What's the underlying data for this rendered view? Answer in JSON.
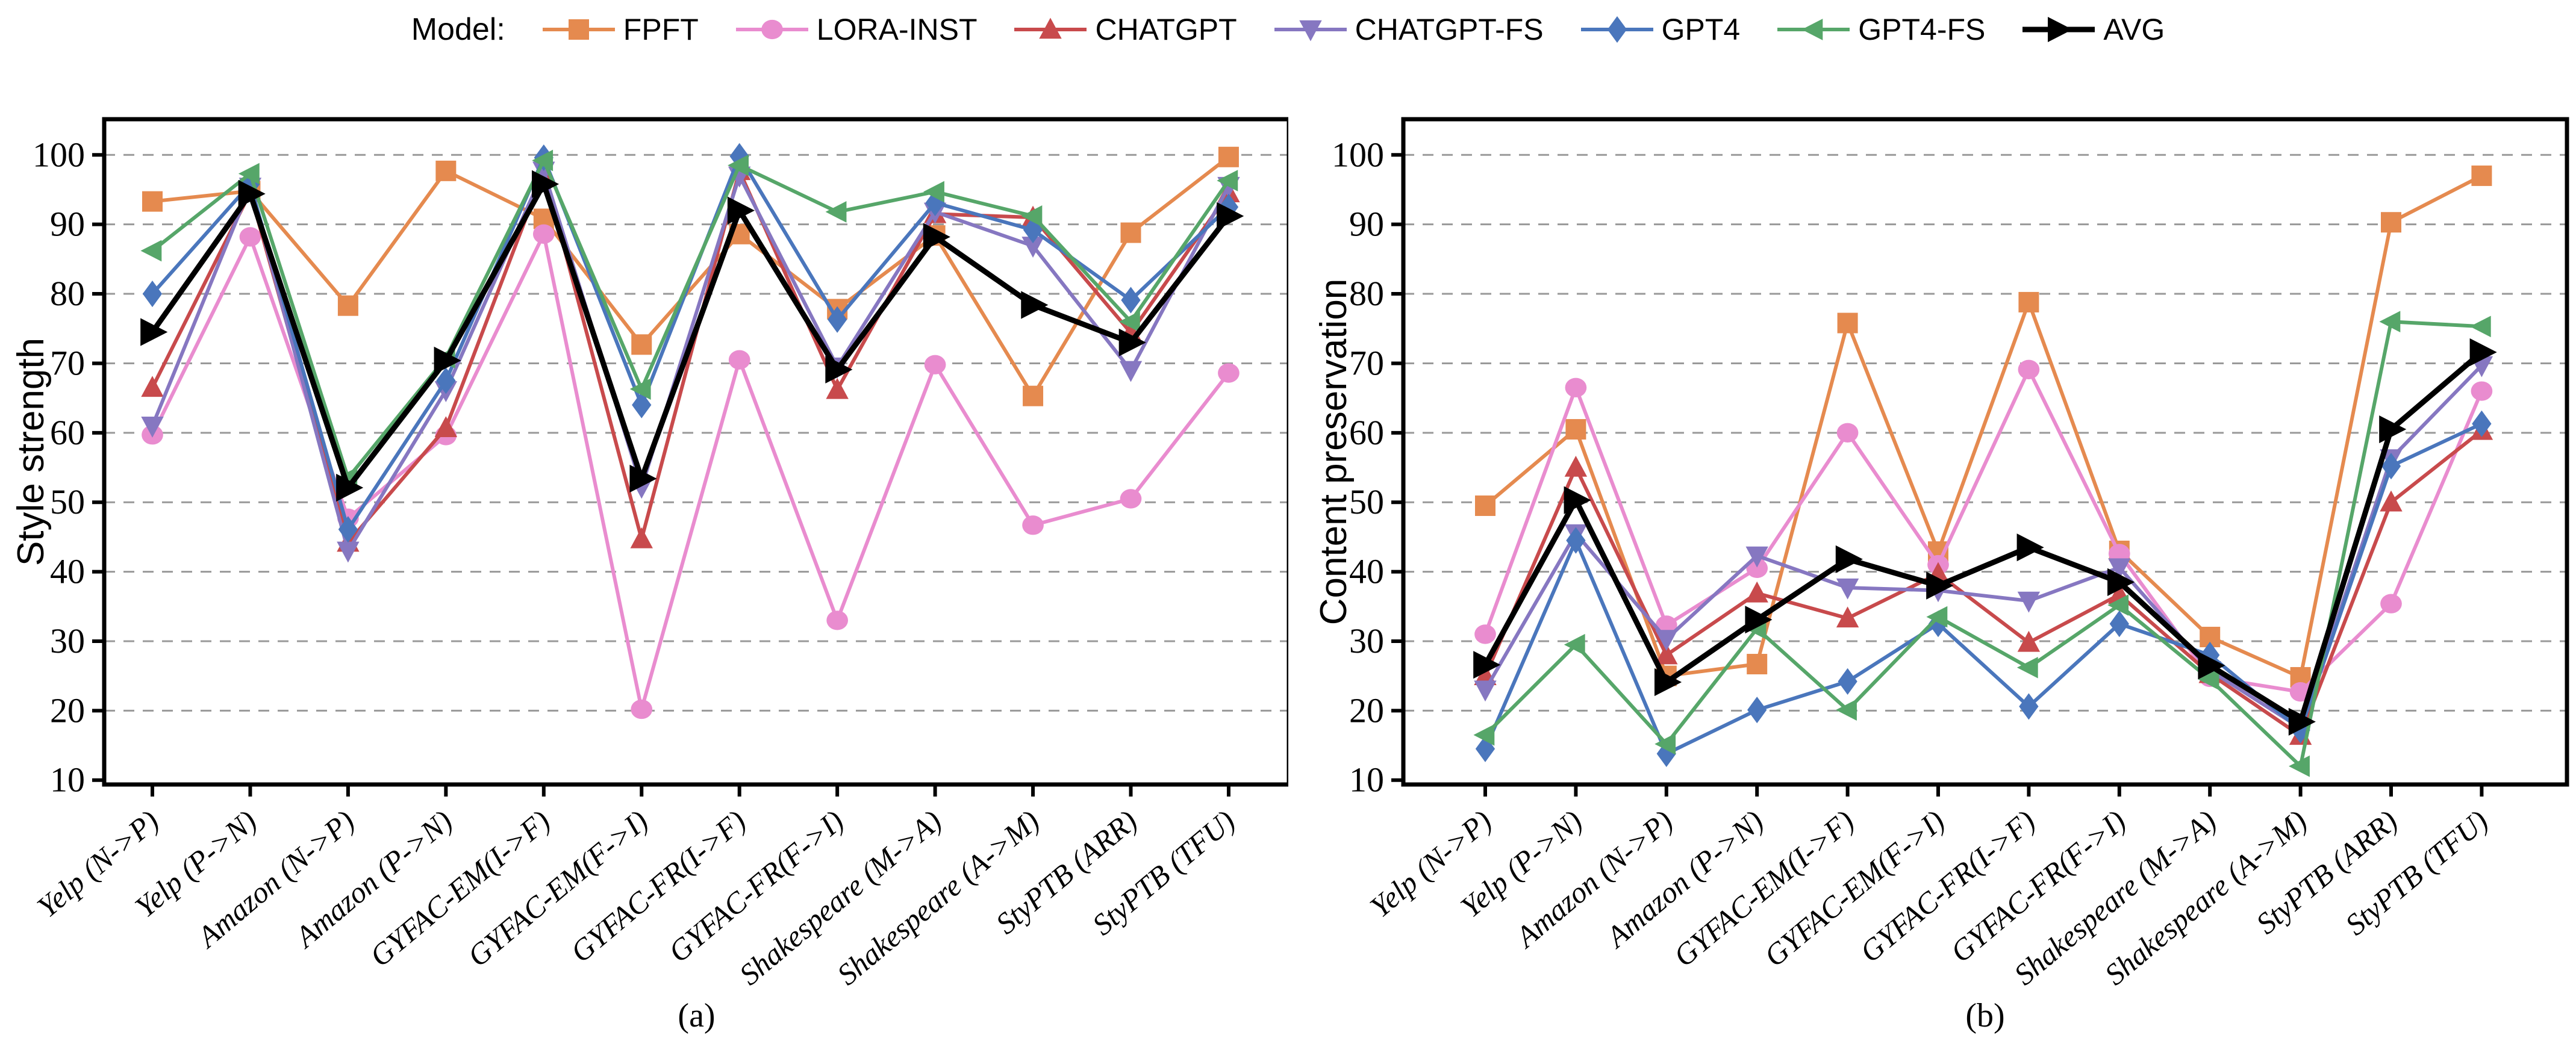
{
  "legend": {
    "title": "Model:",
    "items": [
      "FPFT",
      "LORA-INST",
      "CHATGPT",
      "CHATGPT-FS",
      "GPT4",
      "GPT4-FS",
      "AVG"
    ]
  },
  "colors": {
    "FPFT": "#E58A4F",
    "LORA-INST": "#E98CCF",
    "CHATGPT": "#C84A4C",
    "CHATGPT-FS": "#8677C1",
    "GPT4": "#4A76BC",
    "GPT4-FS": "#56A669",
    "AVG": "#000000",
    "gridline": "#999999",
    "axis": "#000000"
  },
  "chart_data": [
    {
      "type": "line",
      "title": "(a)",
      "ylabel": "Style strength",
      "ylim": [
        10,
        105
      ],
      "yticks": [
        10,
        20,
        30,
        40,
        50,
        60,
        70,
        80,
        90,
        100
      ],
      "grid": "dashed horizontal",
      "legend_position": "top figure-level",
      "categories": [
        "Yelp (N->P)",
        "Yelp (P->N)",
        "Amazon (N->P)",
        "Amazon (P->N)",
        "GYFAC-EM(I->F)",
        "GYFAC-EM(F->I)",
        "GYFAC-FR(I->F)",
        "GYFAC-FR(F->I)",
        "Shakespeare (M->A)",
        "Shakespeare (A->M)",
        "StyPTB (ARR)",
        "StyPTB (TFU)"
      ],
      "series": [
        {
          "name": "FPFT",
          "marker": "square",
          "values": [
            93.3,
            94.8,
            78.3,
            97.7,
            90.8,
            72.7,
            88.6,
            77.8,
            88.4,
            65.3,
            88.8,
            99.7
          ]
        },
        {
          "name": "LORA-INST",
          "marker": "circle",
          "values": [
            59.7,
            88.2,
            47.7,
            59.6,
            88.6,
            20.2,
            70.5,
            33.0,
            69.8,
            46.7,
            50.5,
            68.6
          ]
        },
        {
          "name": "CHATGPT",
          "marker": "triangle-up",
          "values": [
            66.5,
            94.6,
            44.2,
            60.7,
            97.6,
            44.7,
            97.7,
            66.2,
            91.5,
            91.0,
            74.4,
            94.5
          ]
        },
        {
          "name": "CHATGPT-FS",
          "marker": "triangle-down",
          "values": [
            61.0,
            95.4,
            43.0,
            66.1,
            97.7,
            52.2,
            97.0,
            69.5,
            91.8,
            86.9,
            69.0,
            95.5
          ]
        },
        {
          "name": "GPT4",
          "marker": "diamond",
          "values": [
            80.0,
            95.8,
            46.1,
            67.5,
            99.6,
            64.0,
            99.8,
            76.3,
            93.1,
            89.2,
            79.1,
            92.5
          ]
        },
        {
          "name": "GPT4-FS",
          "marker": "triangle-left",
          "values": [
            86.2,
            97.3,
            53.5,
            70.8,
            99.2,
            66.3,
            98.5,
            91.8,
            94.7,
            91.2,
            76.0,
            96.3
          ]
        },
        {
          "name": "AVG",
          "marker": "triangle-right",
          "values": [
            74.5,
            94.4,
            52.1,
            70.4,
            95.8,
            53.4,
            92.0,
            69.1,
            88.2,
            78.4,
            73.0,
            91.2
          ]
        }
      ]
    },
    {
      "type": "line",
      "title": "(b)",
      "ylabel": "Content preservation",
      "ylim": [
        10,
        105
      ],
      "yticks": [
        10,
        20,
        30,
        40,
        50,
        60,
        70,
        80,
        90,
        100
      ],
      "grid": "dashed horizontal",
      "legend_position": "top figure-level",
      "categories": [
        "Yelp (N->P)",
        "Yelp (P->N)",
        "Amazon (N->P)",
        "Amazon (P->N)",
        "GYFAC-EM(I->F)",
        "GYFAC-EM(F->I)",
        "GYFAC-FR(I->F)",
        "GYFAC-FR(F->I)",
        "Shakespeare (M->A)",
        "Shakespeare (A->M)",
        "StyPTB (ARR)",
        "StyPTB (TFU)"
      ],
      "series": [
        {
          "name": "FPFT",
          "marker": "square",
          "values": [
            49.5,
            60.5,
            25.0,
            26.7,
            75.8,
            42.9,
            78.8,
            43.0,
            30.6,
            24.8,
            90.3,
            97.0
          ]
        },
        {
          "name": "LORA-INST",
          "marker": "circle",
          "values": [
            31.0,
            66.5,
            32.3,
            40.5,
            60.0,
            41.0,
            69.1,
            42.6,
            24.8,
            22.7,
            35.4,
            66.0
          ]
        },
        {
          "name": "CHATGPT",
          "marker": "triangle-up",
          "values": [
            25.0,
            55.0,
            28.0,
            36.9,
            33.3,
            39.7,
            29.8,
            36.7,
            25.3,
            16.4,
            50.0,
            60.3
          ]
        },
        {
          "name": "CHATGPT-FS",
          "marker": "triangle-down",
          "values": [
            23.0,
            45.5,
            30.3,
            42.3,
            37.7,
            37.3,
            35.8,
            40.6,
            25.8,
            17.5,
            56.3,
            69.7
          ]
        },
        {
          "name": "GPT4",
          "marker": "diamond",
          "values": [
            14.5,
            44.5,
            13.8,
            20.1,
            24.2,
            32.5,
            20.6,
            32.5,
            28.0,
            17.2,
            55.2,
            61.3
          ]
        },
        {
          "name": "GPT4-FS",
          "marker": "triangle-left",
          "values": [
            16.5,
            29.5,
            15.2,
            31.8,
            20.1,
            33.5,
            26.2,
            35.2,
            24.5,
            12.0,
            76.0,
            75.3
          ]
        },
        {
          "name": "AVG",
          "marker": "triangle-right",
          "values": [
            26.6,
            50.3,
            24.1,
            33.1,
            41.8,
            38.0,
            43.5,
            38.5,
            26.5,
            18.4,
            60.5,
            71.6
          ]
        }
      ]
    }
  ]
}
